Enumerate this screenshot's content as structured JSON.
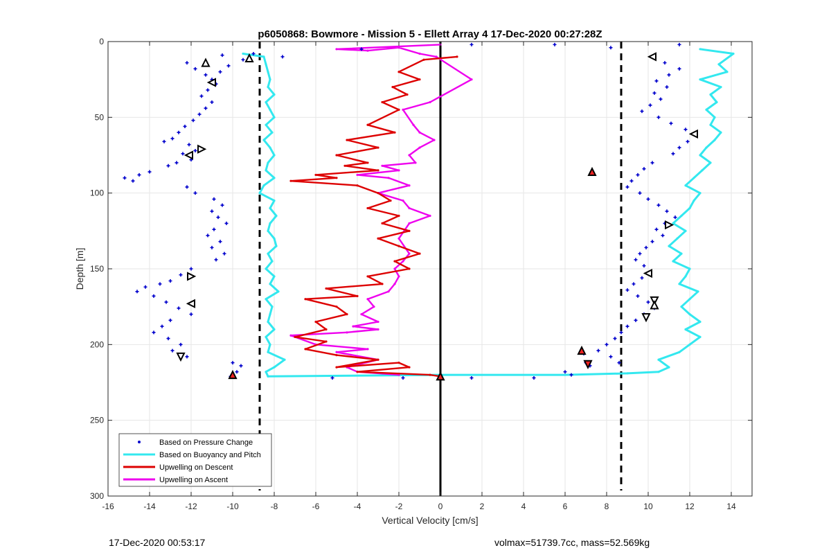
{
  "chart_data": {
    "type": "scatter",
    "title": "p6050868: Bowmore - Mission 5 - Ellett Array 4 17-Dec-2020 00:27:28Z",
    "xlabel": "Vertical Velocity [cm/s]",
    "ylabel": "Depth [m]",
    "xlim": [
      -16,
      15
    ],
    "ylim": [
      0,
      300
    ],
    "y_reversed": true,
    "grid": true,
    "xticks": [
      -16,
      -14,
      -12,
      -10,
      -8,
      -6,
      -4,
      -2,
      0,
      2,
      4,
      6,
      8,
      10,
      12,
      14
    ],
    "yticks": [
      0,
      50,
      100,
      150,
      200,
      250,
      300
    ],
    "legend_position": "bottom-left",
    "legend": [
      {
        "label": "Based on Pressure Change",
        "color": "#0000cc",
        "style": "marker"
      },
      {
        "label": "Based on Buoyancy and Pitch",
        "color": "#33e8ef",
        "style": "line"
      },
      {
        "label": "Upwelling on Descent",
        "color": "#dd0000",
        "style": "line"
      },
      {
        "label": "Upwelling on Ascent",
        "color": "#ee00ee",
        "style": "line"
      }
    ],
    "reference_lines": {
      "zero_line_x": 0,
      "dashed_lines_x": [
        -8.7,
        8.7
      ]
    },
    "series": [
      {
        "name": "Based on Buoyancy and Pitch",
        "color": "#33e8ef",
        "profiles": [
          {
            "x": [
              -9.5,
              -8.5,
              -8.4,
              -8.3,
              -8.2,
              -8.3,
              -8.0,
              -8.4,
              -8.2,
              -8.0,
              -8.4,
              -8.1,
              -8.5,
              -8.2,
              -8.0,
              -8.3,
              -8.4,
              -8.0,
              -8.5,
              -8.7,
              -8.0,
              -8.2,
              -7.9,
              -8.2,
              -8.3,
              -8.0,
              -7.9,
              -8.3,
              -8.1,
              -8.4,
              -8.0,
              -8.2,
              -7.8,
              -8.4,
              -8.1,
              -8.2,
              -8.3,
              -8.0,
              -8.4,
              -8.2,
              -8.3,
              -7.5,
              -8.0,
              -8.4,
              -8.3
            ],
            "y": [
              8,
              10,
              15,
              20,
              25,
              30,
              35,
              40,
              45,
              50,
              55,
              60,
              65,
              70,
              75,
              80,
              85,
              90,
              95,
              100,
              105,
              110,
              115,
              120,
              125,
              130,
              135,
              140,
              145,
              150,
              155,
              160,
              165,
              170,
              175,
              180,
              185,
              190,
              195,
              200,
              205,
              210,
              215,
              218,
              221
            ]
          },
          {
            "x": [
              -8.3,
              0,
              6,
              9,
              10.5,
              11.0,
              10.5,
              11.5,
              12.0,
              12.5,
              11.8,
              12.5,
              12.0,
              11.6,
              12.0,
              12.4,
              11.5,
              11.8,
              12.0,
              11.2,
              11.6,
              11.0,
              11.4,
              11.8,
              11.2,
              11.6,
              12.0,
              12.2,
              12.5,
              11.8,
              12.2,
              12.6,
              13.0,
              12.5,
              12.8,
              13.2,
              13.5,
              13.0,
              13.2,
              12.8,
              13.3,
              13.0,
              13.5,
              12.5,
              13.8,
              13.4,
              14.1,
              12.5
            ],
            "y": [
              221,
              220,
              220,
              219,
              218,
              215,
              210,
              205,
              200,
              195,
              190,
              185,
              180,
              175,
              170,
              165,
              160,
              155,
              150,
              145,
              140,
              135,
              130,
              125,
              120,
              115,
              110,
              105,
              100,
              95,
              90,
              85,
              80,
              75,
              70,
              65,
              60,
              55,
              50,
              45,
              40,
              35,
              30,
              25,
              20,
              15,
              8,
              5
            ]
          }
        ]
      },
      {
        "name": "Upwelling on Descent",
        "color": "#dd0000",
        "x": [
          0.8,
          -0.8,
          -2.0,
          -1.0,
          -2.3,
          -1.6,
          -2.8,
          -2.0,
          -3.5,
          -2.2,
          -4.5,
          -3.0,
          -5.0,
          -3.5,
          -4.6,
          -3.0,
          -6.0,
          -5.0,
          -7.2,
          -4.0,
          -3.0,
          -2.4,
          -3.5,
          -2.0,
          -2.8,
          -1.5,
          -3.0,
          -2.0,
          -1.0,
          -2.2,
          -1.5,
          -3.5,
          -2.8,
          -5.5,
          -4.0,
          -6.5,
          -5.0,
          -4.5,
          -6.0,
          -5.5,
          -7.0,
          -5.5,
          -6.5,
          -5.0,
          -3.0,
          -5.0,
          -2.0,
          -1.5,
          -4.0,
          -0.5,
          0
        ],
        "y": [
          10,
          12,
          20,
          25,
          30,
          35,
          40,
          45,
          55,
          60,
          65,
          70,
          75,
          80,
          82,
          85,
          88,
          90,
          92,
          95,
          100,
          105,
          110,
          115,
          120,
          125,
          130,
          135,
          140,
          145,
          150,
          155,
          160,
          163,
          168,
          170,
          175,
          180,
          185,
          190,
          195,
          198,
          203,
          207,
          210,
          215,
          212,
          215,
          218,
          220,
          221
        ]
      },
      {
        "name": "Upwelling on Ascent",
        "color": "#ee00ee",
        "x": [
          0,
          -5.0,
          -3.5,
          -2.0,
          -1.0,
          -0.2,
          1.5,
          -0.5,
          -1.8,
          -1.3,
          -1.0,
          -0.3,
          -1.0,
          -1.5,
          -1.2,
          -2.8,
          -2.0,
          -4.0,
          -2.5,
          -1.5,
          -3.0,
          -1.8,
          -1.5,
          -0.5,
          -1.5,
          -2.0,
          -1.5,
          -1.8,
          -2.2,
          -2.0,
          -2.2,
          -2.5,
          -3.5,
          -3.2,
          -3.8,
          -3.0,
          -4.2,
          -3.0,
          -4.5,
          -7.2,
          -6.0,
          -3.5,
          -5.0,
          -3.0,
          -4.5,
          -4.0,
          -2.0
        ],
        "y": [
          2,
          5,
          6,
          4,
          8,
          10,
          25,
          40,
          45,
          55,
          60,
          65,
          70,
          75,
          80,
          82,
          85,
          88,
          90,
          95,
          100,
          105,
          110,
          115,
          120,
          130,
          140,
          145,
          150,
          155,
          160,
          165,
          170,
          175,
          180,
          185,
          188,
          190,
          192,
          194,
          200,
          203,
          205,
          210,
          215,
          218,
          220
        ]
      },
      {
        "name": "Based on Pressure Change",
        "color": "#0000cc",
        "points": [
          [
            -12.2,
            14
          ],
          [
            -11.8,
            18
          ],
          [
            -11.3,
            22
          ],
          [
            -11.0,
            25
          ],
          [
            -10.6,
            20
          ],
          [
            -10.2,
            16
          ],
          [
            -10.8,
            28
          ],
          [
            -11.2,
            32
          ],
          [
            -11.5,
            36
          ],
          [
            -11.0,
            40
          ],
          [
            -11.3,
            44
          ],
          [
            -11.6,
            48
          ],
          [
            -11.9,
            52
          ],
          [
            -12.3,
            56
          ],
          [
            -12.6,
            60
          ],
          [
            -12.9,
            64
          ],
          [
            -13.3,
            66
          ],
          [
            -12.1,
            68
          ],
          [
            -11.8,
            72
          ],
          [
            -12.4,
            74
          ],
          [
            -12.0,
            78
          ],
          [
            -12.7,
            80
          ],
          [
            -13.1,
            82
          ],
          [
            -14.0,
            86
          ],
          [
            -14.5,
            88
          ],
          [
            -15.2,
            90
          ],
          [
            -14.8,
            92
          ],
          [
            -12.2,
            96
          ],
          [
            -11.8,
            100
          ],
          [
            -10.9,
            104
          ],
          [
            -10.5,
            108
          ],
          [
            -11.0,
            112
          ],
          [
            -10.7,
            116
          ],
          [
            -10.3,
            120
          ],
          [
            -10.9,
            124
          ],
          [
            -11.2,
            128
          ],
          [
            -10.6,
            132
          ],
          [
            -11.0,
            136
          ],
          [
            -10.4,
            140
          ],
          [
            -10.8,
            144
          ],
          [
            -12.0,
            150
          ],
          [
            -12.5,
            154
          ],
          [
            -13.0,
            158
          ],
          [
            -13.5,
            160
          ],
          [
            -14.2,
            162
          ],
          [
            -14.6,
            165
          ],
          [
            -13.8,
            168
          ],
          [
            -13.2,
            172
          ],
          [
            -12.6,
            176
          ],
          [
            -12.0,
            180
          ],
          [
            -13.0,
            184
          ],
          [
            -13.4,
            188
          ],
          [
            -13.8,
            192
          ],
          [
            -13.1,
            196
          ],
          [
            -12.5,
            200
          ],
          [
            -12.9,
            204
          ],
          [
            -12.2,
            208
          ],
          [
            -10.0,
            212
          ],
          [
            -9.6,
            214
          ],
          [
            -9.8,
            218
          ],
          [
            -10.1,
            221
          ],
          [
            -9.0,
            8
          ],
          [
            -9.5,
            12
          ],
          [
            -10.5,
            9
          ],
          [
            -5.2,
            222
          ],
          [
            -1.8,
            222
          ],
          [
            1.5,
            222
          ],
          [
            4.5,
            222
          ],
          [
            6.0,
            218
          ],
          [
            6.3,
            220
          ],
          [
            7.0,
            212
          ],
          [
            10.2,
            10
          ],
          [
            10.8,
            14
          ],
          [
            11.5,
            18
          ],
          [
            11.0,
            22
          ],
          [
            10.4,
            26
          ],
          [
            10.9,
            30
          ],
          [
            10.3,
            34
          ],
          [
            10.6,
            38
          ],
          [
            10.1,
            42
          ],
          [
            9.7,
            46
          ],
          [
            10.5,
            50
          ],
          [
            11.1,
            54
          ],
          [
            11.8,
            58
          ],
          [
            12.3,
            62
          ],
          [
            11.9,
            66
          ],
          [
            11.5,
            70
          ],
          [
            11.2,
            74
          ],
          [
            10.2,
            80
          ],
          [
            9.8,
            84
          ],
          [
            9.5,
            88
          ],
          [
            9.2,
            92
          ],
          [
            9.0,
            96
          ],
          [
            9.6,
            100
          ],
          [
            10.0,
            104
          ],
          [
            10.5,
            108
          ],
          [
            10.9,
            112
          ],
          [
            11.3,
            116
          ],
          [
            10.8,
            120
          ],
          [
            10.4,
            124
          ],
          [
            10.7,
            128
          ],
          [
            10.2,
            132
          ],
          [
            9.9,
            136
          ],
          [
            9.6,
            140
          ],
          [
            9.4,
            144
          ],
          [
            9.8,
            148
          ],
          [
            10.1,
            152
          ],
          [
            9.7,
            156
          ],
          [
            9.3,
            160
          ],
          [
            9.0,
            164
          ],
          [
            9.5,
            168
          ],
          [
            10.0,
            172
          ],
          [
            10.3,
            176
          ],
          [
            9.8,
            180
          ],
          [
            9.4,
            184
          ],
          [
            9.0,
            188
          ],
          [
            8.7,
            192
          ],
          [
            8.4,
            196
          ],
          [
            8.0,
            200
          ],
          [
            7.6,
            204
          ],
          [
            8.2,
            208
          ],
          [
            8.6,
            212
          ],
          [
            6.9,
            206
          ],
          [
            7.2,
            214
          ],
          [
            11.5,
            2
          ],
          [
            8.2,
            4
          ],
          [
            5.5,
            2
          ],
          [
            1.5,
            2
          ],
          [
            -3.8,
            5
          ],
          [
            -7.6,
            10
          ]
        ]
      }
    ],
    "markers": [
      {
        "shape": "triangle-up",
        "stroke": "#000000",
        "fill": "#ffffff",
        "x": -11.3,
        "y": 14
      },
      {
        "shape": "triangle-left",
        "stroke": "#000000",
        "fill": "#ffffff",
        "x": -11.0,
        "y": 27
      },
      {
        "shape": "triangle-right",
        "stroke": "#000000",
        "fill": "#ffffff",
        "x": -11.5,
        "y": 71
      },
      {
        "shape": "triangle-left",
        "stroke": "#000000",
        "fill": "#ffffff",
        "x": -12.1,
        "y": 75
      },
      {
        "shape": "triangle-right",
        "stroke": "#000000",
        "fill": "#ffffff",
        "x": -12.0,
        "y": 155
      },
      {
        "shape": "triangle-left",
        "stroke": "#000000",
        "fill": "#ffffff",
        "x": -12.0,
        "y": 173
      },
      {
        "shape": "triangle-down",
        "stroke": "#000000",
        "fill": "#ffffff",
        "x": -12.5,
        "y": 208
      },
      {
        "shape": "triangle-up",
        "stroke": "#000000",
        "fill": "#ffffff",
        "x": -9.2,
        "y": 11
      },
      {
        "shape": "triangle-up",
        "stroke": "#000000",
        "fill": "#ee2222",
        "x": -10.0,
        "y": 220
      },
      {
        "shape": "triangle-left",
        "stroke": "#000000",
        "fill": "#ffffff",
        "x": 10.2,
        "y": 10
      },
      {
        "shape": "triangle-left",
        "stroke": "#000000",
        "fill": "#ffffff",
        "x": 12.2,
        "y": 61
      },
      {
        "shape": "triangle-up",
        "stroke": "#000000",
        "fill": "#ee2222",
        "x": 7.3,
        "y": 86
      },
      {
        "shape": "triangle-right",
        "stroke": "#000000",
        "fill": "#ffffff",
        "x": 11.0,
        "y": 121
      },
      {
        "shape": "triangle-left",
        "stroke": "#000000",
        "fill": "#ffffff",
        "x": 10.0,
        "y": 153
      },
      {
        "shape": "triangle-down",
        "stroke": "#000000",
        "fill": "#ffffff",
        "x": 10.3,
        "y": 171
      },
      {
        "shape": "triangle-up",
        "stroke": "#000000",
        "fill": "#ffffff",
        "x": 10.3,
        "y": 174
      },
      {
        "shape": "triangle-down",
        "stroke": "#000000",
        "fill": "#ffffff",
        "x": 9.9,
        "y": 182
      },
      {
        "shape": "triangle-up",
        "stroke": "#000000",
        "fill": "#ee2222",
        "x": 6.8,
        "y": 204
      },
      {
        "shape": "triangle-down",
        "stroke": "#000000",
        "fill": "#ee2222",
        "x": 7.1,
        "y": 213
      },
      {
        "shape": "triangle-up",
        "stroke": "#000000",
        "fill": "#ee2222",
        "x": 0,
        "y": 221
      }
    ]
  },
  "footer": {
    "timestamp": "17-Dec-2020 00:53:17",
    "info": "volmax=51739.7cc, mass=52.569kg"
  }
}
